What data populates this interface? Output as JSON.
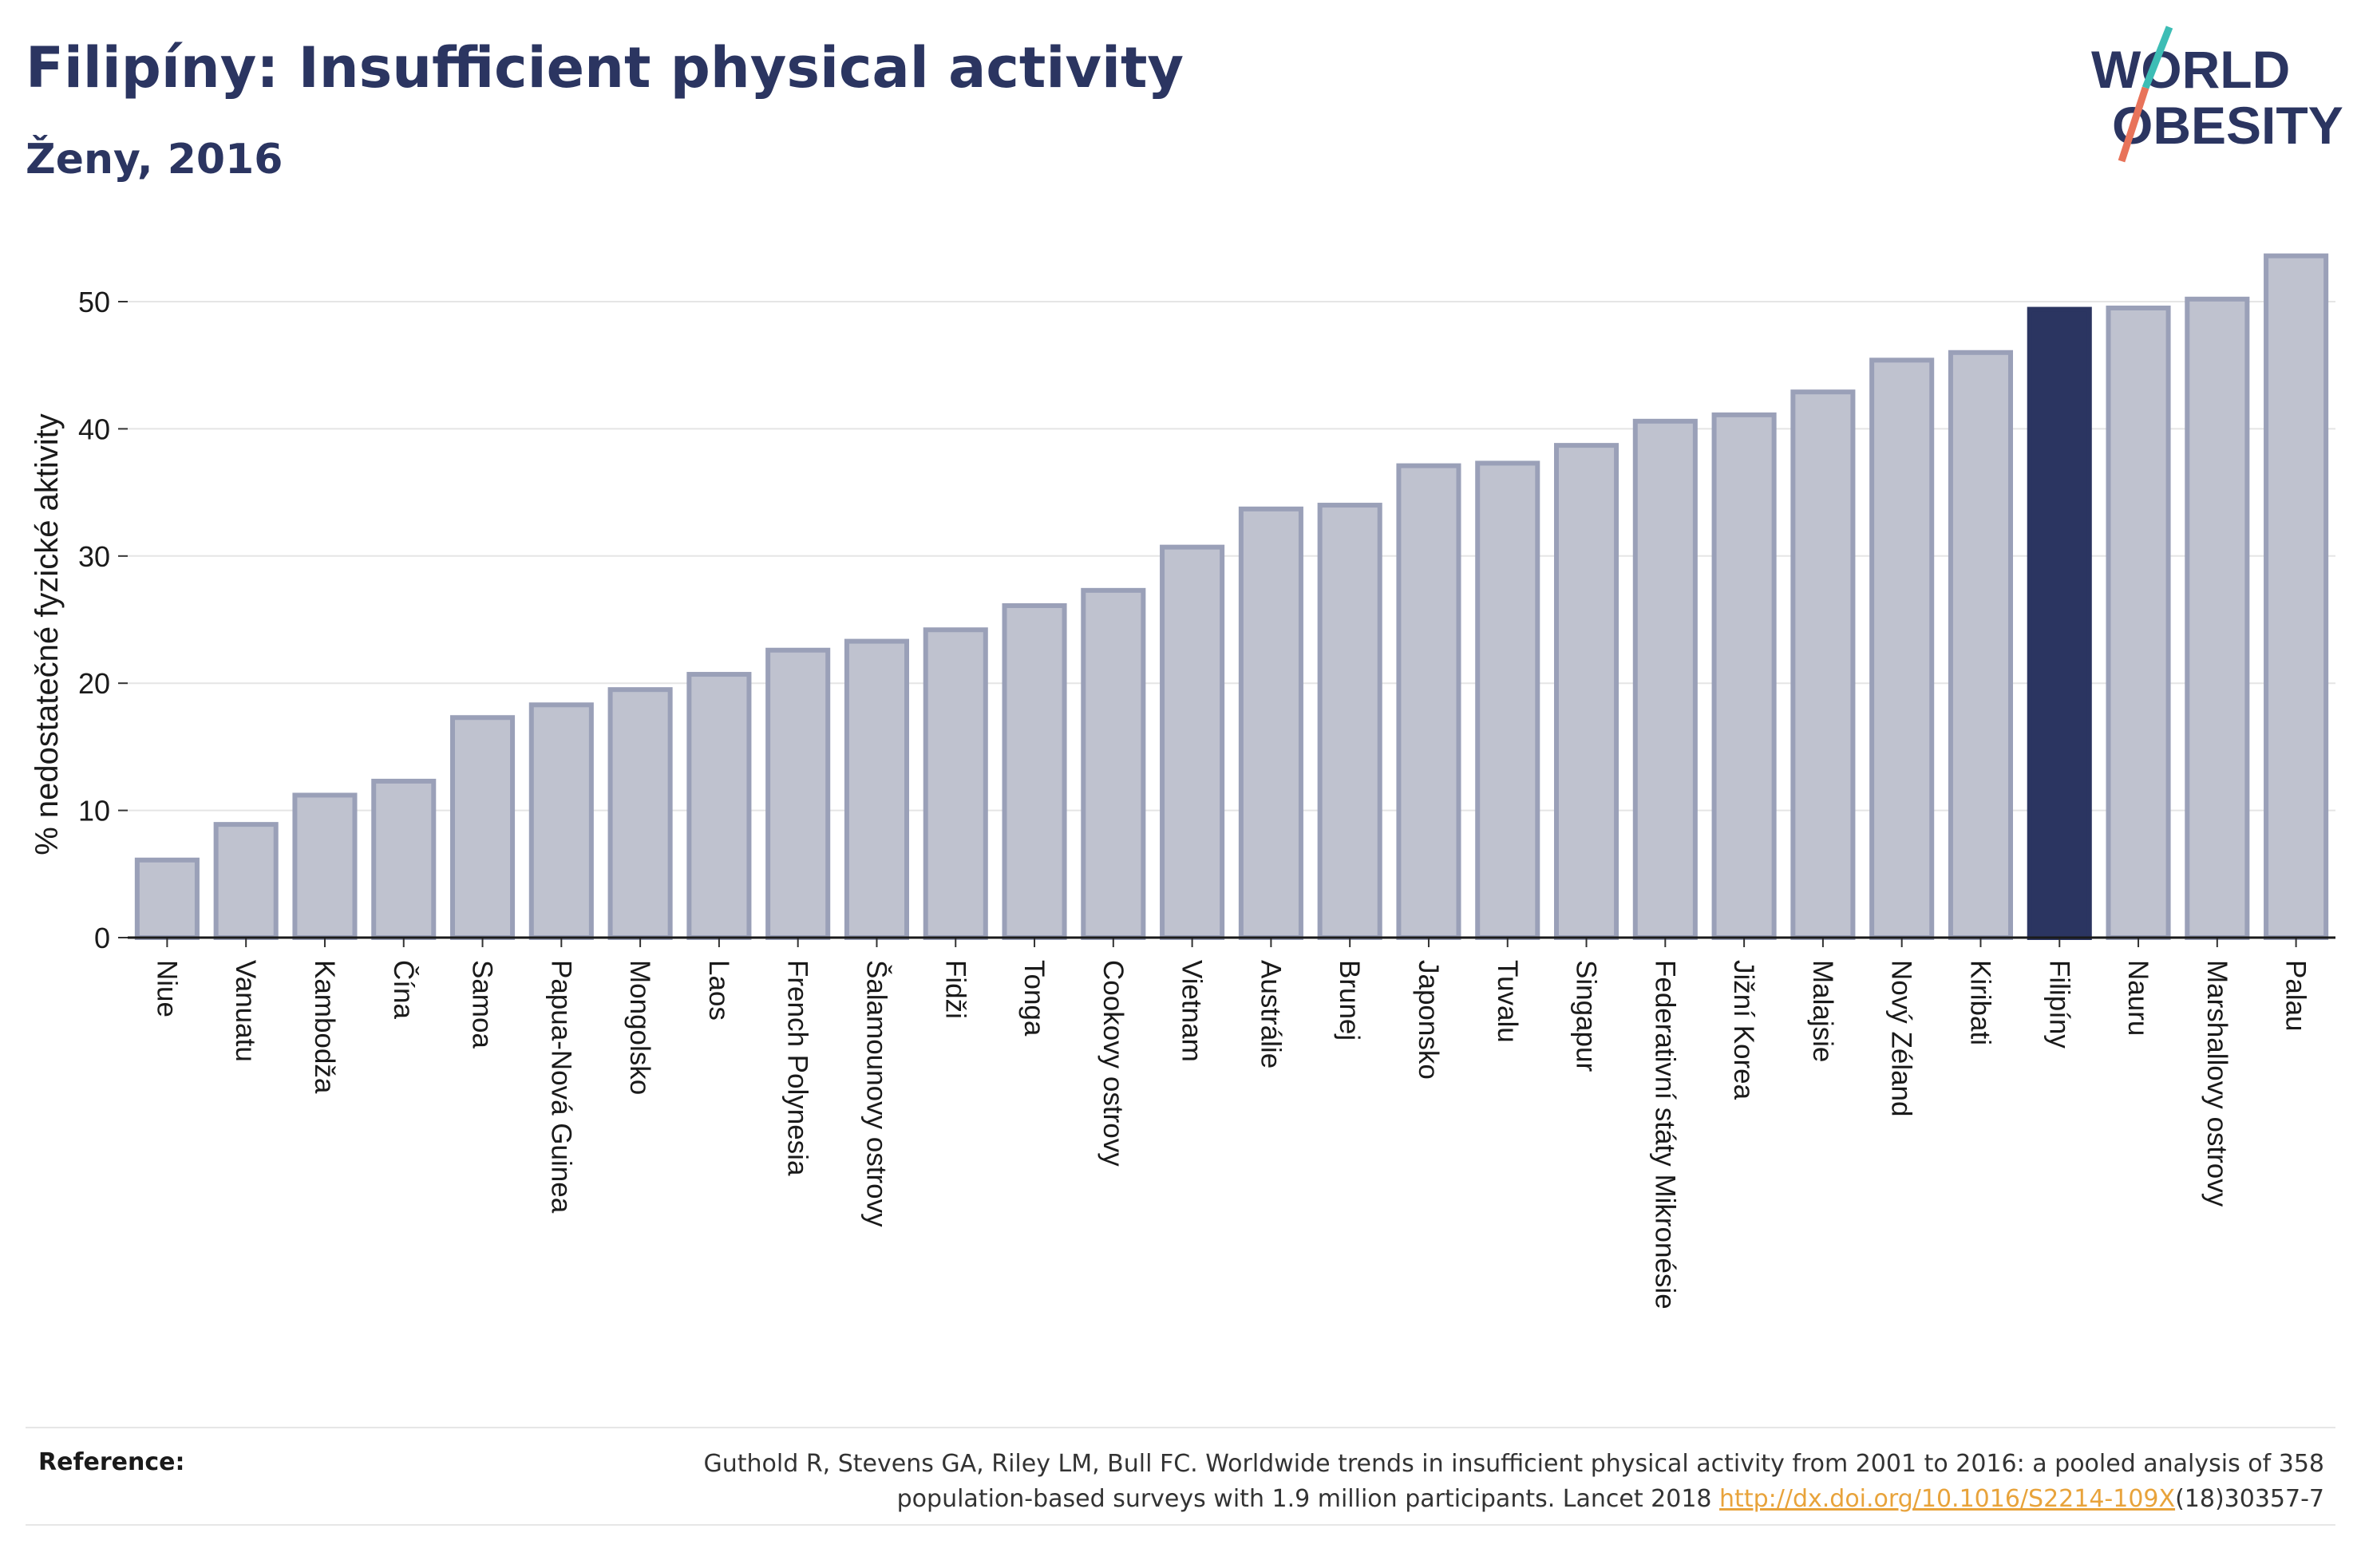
{
  "header": {
    "title": "Filipíny: Insufficient physical activity",
    "subtitle": "Ženy, 2016"
  },
  "logo": {
    "line1": "WORLD",
    "line2": "OBESITY",
    "colors": {
      "text": "#2b3561",
      "slash_top": "#3dbdb5",
      "slash_bottom": "#e8735a"
    }
  },
  "chart_data": {
    "type": "bar",
    "ylabel": "% nedostatečné fyzické aktivity",
    "xlabel": "",
    "ylim": [
      0,
      55
    ],
    "yticks": [
      0,
      10,
      20,
      30,
      40,
      50
    ],
    "grid": true,
    "highlight": "Filipíny",
    "colors": {
      "bar": "#bfc2cf",
      "bar_edge": "#9aa0b8",
      "highlight": "#2b3561"
    },
    "categories": [
      "Niue",
      "Vanuatu",
      "Kambodža",
      "Čína",
      "Samoa",
      "Papua-Nová Guinea",
      "Mongolsko",
      "Laos",
      "French Polynesia",
      "Šalamounovy ostrovy",
      "Fidži",
      "Tonga",
      "Cookovy ostrovy",
      "Vietnam",
      "Austrálie",
      "Brunej",
      "Japonsko",
      "Tuvalu",
      "Singapur",
      "Federativní státy Mikronésie",
      "Jižní Korea",
      "Malajsie",
      "Nový Zéland",
      "Kiribati",
      "Filipíny",
      "Nauru",
      "Marshallovy ostrovy",
      "Palau"
    ],
    "values": [
      6.1,
      8.9,
      11.2,
      12.3,
      17.3,
      18.3,
      19.5,
      20.7,
      22.6,
      23.3,
      24.2,
      26.1,
      27.3,
      30.7,
      33.7,
      34.0,
      37.1,
      37.3,
      38.7,
      40.6,
      41.1,
      42.9,
      45.4,
      46.0,
      49.4,
      49.5,
      50.2,
      53.6
    ]
  },
  "reference": {
    "label": "Reference:",
    "text_line1": "Guthold R, Stevens GA, Riley LM, Bull FC. Worldwide trends in insufficient physical activity from 2001 to 2016: a pooled analysis of 358",
    "text_line2_pre": "population-based surveys with 1.9 million participants. Lancet 2018 ",
    "link": "http://dx.doi.org/10.1016/S2214-109X",
    "text_line2_post": "(18)30357-7"
  }
}
